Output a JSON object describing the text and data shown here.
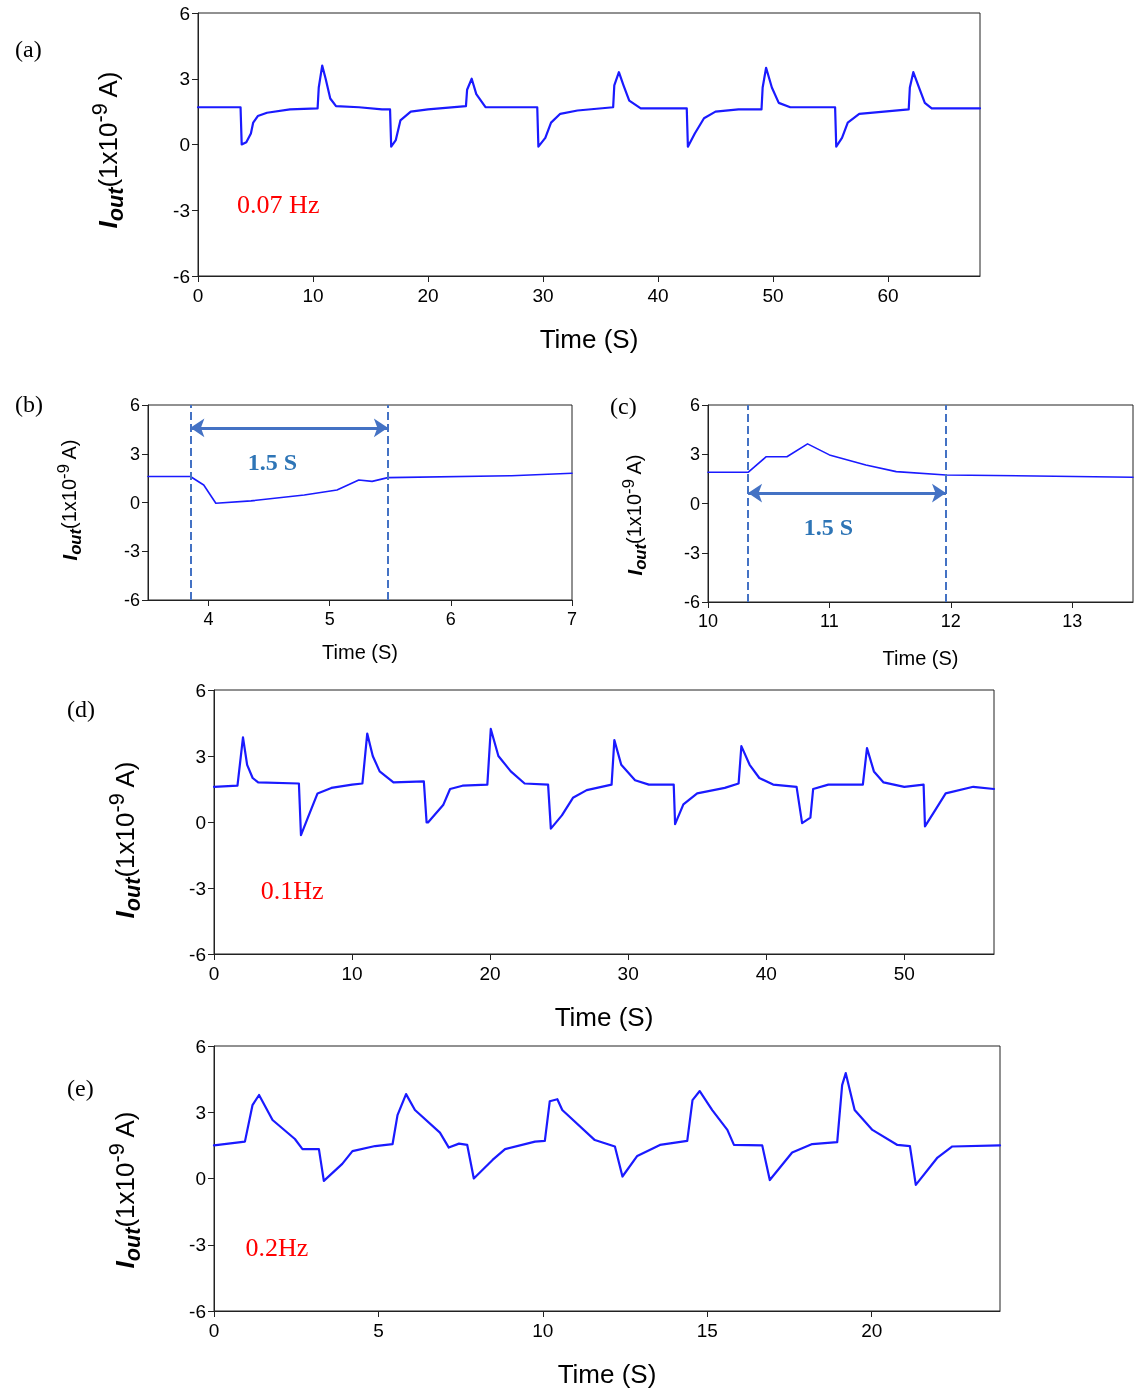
{
  "chart_data": [
    {
      "type": "line",
      "title": "(a)",
      "xlabel": "Time (S)",
      "ylabel": "I$_{out}$(1x10$^{-9}$ A)",
      "annotations": [
        "0.07 Hz"
      ],
      "xlim": [
        0,
        68
      ],
      "xticks": [
        0,
        10,
        20,
        30,
        40,
        50,
        60
      ],
      "ylim": [
        -6,
        6
      ],
      "yticks": [
        -6,
        -3,
        0,
        3,
        6
      ],
      "x": [
        0,
        3.7,
        3.8,
        4.2,
        4.6,
        4.8,
        5.2,
        6,
        8,
        10.4,
        10.5,
        10.8,
        11.1,
        11.5,
        12,
        14,
        16,
        16.7,
        16.8,
        17.2,
        17.6,
        18.5,
        20,
        23.3,
        23.4,
        23.8,
        24.2,
        25,
        29.5,
        29.6,
        30.2,
        30.7,
        31.5,
        33,
        36.1,
        36.2,
        36.6,
        37,
        37.5,
        38.5,
        40,
        42.5,
        42.6,
        43.2,
        44,
        45,
        47,
        49.0,
        49.1,
        49.4,
        49.9,
        50.5,
        51.5,
        55.4,
        55.5,
        56,
        56.5,
        57.5,
        61.8,
        61.9,
        62.2,
        62.7,
        63.2,
        63.8,
        68
      ],
      "series": [
        {
          "color": "#1a1aff",
          "values": [
            1.7,
            1.7,
            0.0,
            0.1,
            0.5,
            1.0,
            1.3,
            1.45,
            1.6,
            1.65,
            2.6,
            3.6,
            3.0,
            2.1,
            1.75,
            1.7,
            1.6,
            1.6,
            -0.1,
            0.2,
            1.1,
            1.5,
            1.6,
            1.75,
            2.5,
            3.0,
            2.3,
            1.7,
            1.7,
            -0.1,
            0.3,
            1.0,
            1.4,
            1.55,
            1.7,
            2.7,
            3.3,
            2.7,
            2.0,
            1.65,
            1.65,
            1.65,
            -0.1,
            0.5,
            1.2,
            1.5,
            1.6,
            1.6,
            2.6,
            3.5,
            2.6,
            1.9,
            1.7,
            1.7,
            -0.1,
            0.3,
            1.0,
            1.4,
            1.6,
            2.6,
            3.3,
            2.6,
            1.9,
            1.65,
            1.65
          ]
        }
      ]
    },
    {
      "type": "line",
      "title": "(b)",
      "xlabel": "Time (S)",
      "ylabel": "I$_{out}$(1x10$^{-9}$ A)",
      "annotations": [
        "1.5 S"
      ],
      "xlim": [
        3.5,
        7
      ],
      "xticks": [
        4,
        5,
        6,
        7
      ],
      "ylim": [
        -6,
        6
      ],
      "yticks": [
        -6,
        -3,
        0,
        3,
        6
      ],
      "ref_lines": [
        {
          "axis": "x",
          "value": 3.85,
          "color": "#4472c4",
          "line_style": "dashed"
        },
        {
          "axis": "x",
          "value": 5.48,
          "color": "#4472c4",
          "line_style": "dashed"
        }
      ],
      "x": [
        3.5,
        3.85,
        3.96,
        4.06,
        4.35,
        4.79,
        5.06,
        5.24,
        5.35,
        5.48,
        6.5,
        7
      ],
      "series": [
        {
          "color": "#1a1aff",
          "values": [
            1.6,
            1.6,
            1.08,
            -0.05,
            0.1,
            0.46,
            0.77,
            1.38,
            1.3,
            1.53,
            1.65,
            1.8
          ]
        }
      ]
    },
    {
      "type": "line",
      "title": "(c)",
      "xlabel": "Time (S)",
      "ylabel": "I$_{out}$(1x10$^{-9}$ A)",
      "annotations": [
        "1.5 S"
      ],
      "xlim": [
        10,
        13.5
      ],
      "xticks": [
        10,
        11,
        12,
        13
      ],
      "ylim": [
        -6,
        6
      ],
      "yticks": [
        -6,
        -3,
        0,
        3,
        6
      ],
      "ref_lines": [
        {
          "axis": "x",
          "value": 10.33,
          "color": "#4472c4",
          "line_style": "dashed"
        },
        {
          "axis": "x",
          "value": 11.96,
          "color": "#4472c4",
          "line_style": "dashed"
        }
      ],
      "x": [
        10,
        10.33,
        10.48,
        10.65,
        10.82,
        11.0,
        11.3,
        11.55,
        11.96,
        13.5
      ],
      "series": [
        {
          "color": "#1a1aff",
          "values": [
            1.9,
            1.9,
            2.85,
            2.85,
            3.63,
            2.96,
            2.35,
            1.94,
            1.74,
            1.6
          ]
        }
      ]
    },
    {
      "type": "line",
      "title": "(d)",
      "xlabel": "Time (S)",
      "ylabel": "I$_{out}$(1x10$^{-9}$ A)",
      "annotations": [
        "0.1Hz"
      ],
      "xlim": [
        0,
        56.5
      ],
      "xticks": [
        0,
        10,
        20,
        30,
        40,
        50
      ],
      "ylim": [
        -6,
        6
      ],
      "yticks": [
        -6,
        -3,
        0,
        3,
        6
      ],
      "x": [
        0,
        1.7,
        2.1,
        2.4,
        2.8,
        3.2,
        6.15,
        6.3,
        6.8,
        7.5,
        8.5,
        10,
        10.75,
        11.1,
        11.5,
        12,
        13,
        15.2,
        15.4,
        15.5,
        16.6,
        17.1,
        18,
        19.8,
        20.05,
        20.6,
        21.5,
        22.5,
        24.2,
        24.4,
        25.2,
        26,
        27,
        28.8,
        29.0,
        29.5,
        30.5,
        31.5,
        33.3,
        33.4,
        34,
        35,
        37,
        38.0,
        38.2,
        38.8,
        39.5,
        40.5,
        42.2,
        42.6,
        43.2,
        43.4,
        44.5,
        47.0,
        47.3,
        47.8,
        48.5,
        50,
        51.4,
        51.5,
        52.3,
        53,
        55,
        56.5
      ],
      "series": [
        {
          "color": "#1a1aff",
          "values": [
            1.6,
            1.65,
            3.85,
            2.6,
            2.0,
            1.8,
            1.75,
            -0.6,
            0.2,
            1.3,
            1.55,
            1.7,
            1.75,
            4.02,
            3.0,
            2.3,
            1.8,
            1.85,
            -0.02,
            -0.02,
            0.77,
            1.5,
            1.65,
            1.7,
            4.23,
            3.0,
            2.3,
            1.75,
            1.7,
            -0.3,
            0.3,
            1.1,
            1.45,
            1.7,
            3.72,
            2.6,
            1.9,
            1.7,
            1.7,
            -0.1,
            0.8,
            1.3,
            1.55,
            1.75,
            3.45,
            2.6,
            2.0,
            1.7,
            1.6,
            -0.05,
            0.2,
            1.5,
            1.7,
            1.7,
            3.36,
            2.3,
            1.8,
            1.6,
            1.7,
            -0.2,
            0.6,
            1.3,
            1.6,
            1.5
          ]
        }
      ]
    },
    {
      "type": "line",
      "title": "(e)",
      "xlabel": "Time (S)",
      "ylabel": "I$_{out}$(1x10$^{-9}$ A)",
      "annotations": [
        "0.2Hz"
      ],
      "xlim": [
        0,
        23.9
      ],
      "xticks": [
        0,
        5,
        10,
        15,
        20
      ],
      "ylim": [
        -6,
        6
      ],
      "yticks": [
        -6,
        -3,
        0,
        3,
        6
      ],
      "x": [
        0,
        0.94,
        1.17,
        1.37,
        1.78,
        2.46,
        2.69,
        3.19,
        3.34,
        3.9,
        4.21,
        4.9,
        5.43,
        5.58,
        5.84,
        6.11,
        6.87,
        7.14,
        7.45,
        7.7,
        7.9,
        8.47,
        8.85,
        9.76,
        10.06,
        10.21,
        10.44,
        10.59,
        11.58,
        12.19,
        12.42,
        12.87,
        13.56,
        14.39,
        14.55,
        14.77,
        15.15,
        15.61,
        15.81,
        16.67,
        16.9,
        17.58,
        18.19,
        18.95,
        19.1,
        19.21,
        19.48,
        20.02,
        20.78,
        21.16,
        21.34,
        22.0,
        22.45,
        23.9
      ],
      "series": [
        {
          "color": "#1a1aff",
          "values": [
            1.5,
            1.67,
            3.32,
            3.78,
            2.65,
            1.79,
            1.33,
            1.33,
            -0.11,
            0.66,
            1.24,
            1.47,
            1.56,
            2.87,
            3.82,
            3.1,
            2.08,
            1.4,
            1.58,
            1.52,
            0.0,
            0.84,
            1.33,
            1.67,
            1.7,
            3.5,
            3.59,
            3.1,
            1.74,
            1.45,
            0.09,
            1.02,
            1.52,
            1.7,
            3.55,
            3.96,
            3.1,
            2.2,
            1.52,
            1.5,
            -0.07,
            1.18,
            1.56,
            1.65,
            4.23,
            4.77,
            3.1,
            2.2,
            1.52,
            1.47,
            -0.29,
            0.95,
            1.45,
            1.5
          ]
        }
      ]
    }
  ]
}
